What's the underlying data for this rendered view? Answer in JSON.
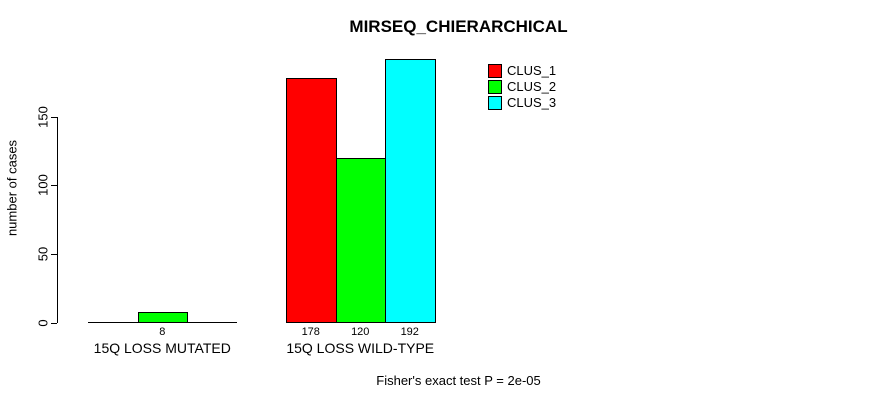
{
  "chart_data": {
    "type": "bar",
    "title": "MIRSEQ_CHIERARCHICAL",
    "ylabel": "number of cases",
    "xlabel": "",
    "footer": "Fisher's exact test P = 2e-05",
    "categories": [
      "15Q LOSS MUTATED",
      "15Q LOSS WILD-TYPE"
    ],
    "series": [
      {
        "name": "CLUS_1",
        "color": "#ff0000",
        "values": [
          0,
          178
        ]
      },
      {
        "name": "CLUS_2",
        "color": "#00ff00",
        "values": [
          8,
          120
        ]
      },
      {
        "name": "CLUS_3",
        "color": "#00ffff",
        "values": [
          0,
          192
        ]
      }
    ],
    "value_labels_visible": [
      "8",
      "178",
      "120",
      "192"
    ],
    "yticks": [
      0,
      50,
      100,
      150
    ],
    "ylim": [
      0,
      195
    ],
    "grid": false,
    "legend_position": "top-right-inside",
    "bar_border_color": "#000000",
    "axis_color": "#000000",
    "text_color": "#000000",
    "background_color": "#ffffff"
  }
}
